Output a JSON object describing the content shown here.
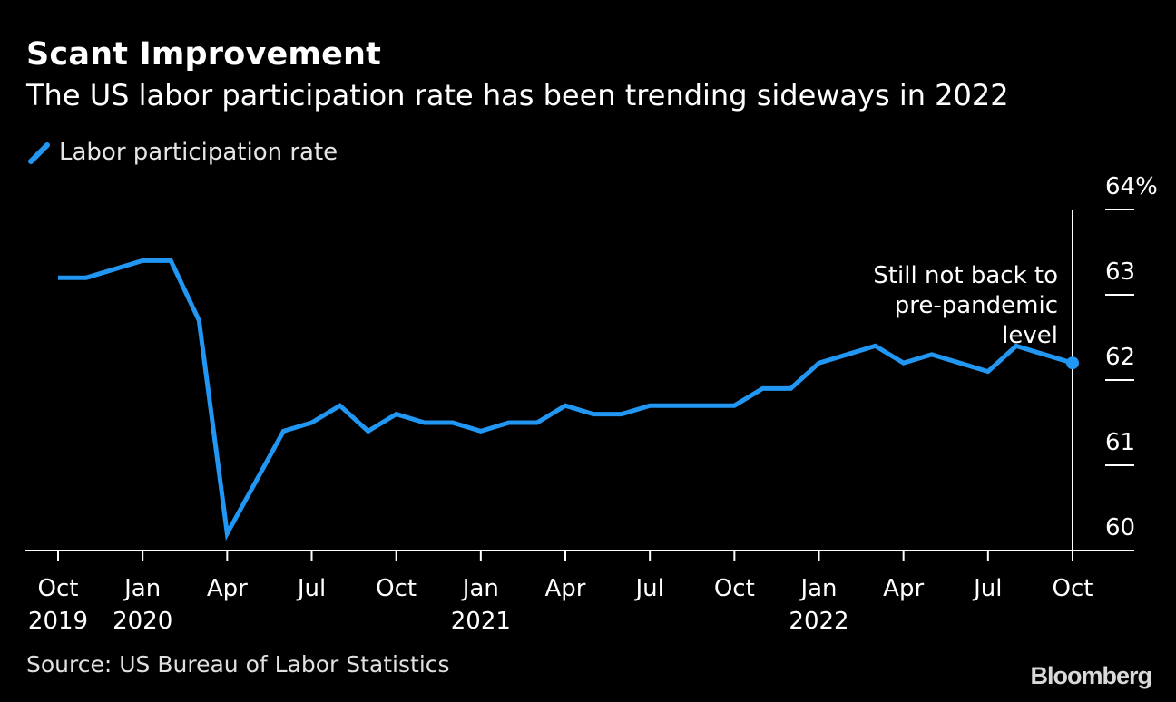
{
  "title": "Scant Improvement",
  "subtitle": "The US labor participation rate has been trending sideways in 2022",
  "source": "Source: US Bureau of Labor Statistics",
  "brand": "Bloomberg",
  "legend_icon": "line-swatch-icon",
  "colors": {
    "background": "#000000",
    "series": "#2196f3",
    "axis": "#ffffff",
    "text": "#ffffff"
  },
  "chart_data": {
    "type": "line",
    "title": "Scant Improvement",
    "subtitle": "The US labor participation rate has been trending sideways in 2022",
    "xlabel": "",
    "ylabel": "",
    "x": [
      "2019-10",
      "2019-11",
      "2019-12",
      "2020-01",
      "2020-02",
      "2020-03",
      "2020-04",
      "2020-05",
      "2020-06",
      "2020-07",
      "2020-08",
      "2020-09",
      "2020-10",
      "2020-11",
      "2020-12",
      "2021-01",
      "2021-02",
      "2021-03",
      "2021-04",
      "2021-05",
      "2021-06",
      "2021-07",
      "2021-08",
      "2021-09",
      "2021-10",
      "2021-11",
      "2021-12",
      "2022-01",
      "2022-02",
      "2022-03",
      "2022-04",
      "2022-05",
      "2022-06",
      "2022-07",
      "2022-08",
      "2022-09",
      "2022-10"
    ],
    "series": [
      {
        "name": "Labor participation rate",
        "values": [
          63.2,
          63.2,
          63.3,
          63.4,
          63.4,
          62.7,
          60.2,
          60.8,
          61.4,
          61.5,
          61.7,
          61.4,
          61.6,
          61.5,
          61.5,
          61.4,
          61.5,
          61.5,
          61.7,
          61.6,
          61.6,
          61.7,
          61.7,
          61.7,
          61.7,
          61.9,
          61.9,
          62.2,
          62.3,
          62.4,
          62.2,
          62.3,
          62.2,
          62.1,
          62.4,
          62.3,
          62.2
        ]
      }
    ],
    "ylim": [
      59.8,
      64.0
    ],
    "y_ticks": [
      {
        "value": 64,
        "label": "64%"
      },
      {
        "value": 63,
        "label": "63"
      },
      {
        "value": 62,
        "label": "62"
      },
      {
        "value": 61,
        "label": "61"
      },
      {
        "value": 60,
        "label": "60"
      }
    ],
    "x_ticks": [
      {
        "x": "2019-10",
        "label": "Oct",
        "year": "2019"
      },
      {
        "x": "2020-01",
        "label": "Jan",
        "year": "2020"
      },
      {
        "x": "2020-04",
        "label": "Apr",
        "year": ""
      },
      {
        "x": "2020-07",
        "label": "Jul",
        "year": ""
      },
      {
        "x": "2020-10",
        "label": "Oct",
        "year": ""
      },
      {
        "x": "2021-01",
        "label": "Jan",
        "year": "2021"
      },
      {
        "x": "2021-04",
        "label": "Apr",
        "year": ""
      },
      {
        "x": "2021-07",
        "label": "Jul",
        "year": ""
      },
      {
        "x": "2021-10",
        "label": "Oct",
        "year": ""
      },
      {
        "x": "2022-01",
        "label": "Jan",
        "year": "2022"
      },
      {
        "x": "2022-04",
        "label": "Apr",
        "year": ""
      },
      {
        "x": "2022-07",
        "label": "Jul",
        "year": ""
      },
      {
        "x": "2022-10",
        "label": "Oct",
        "year": ""
      }
    ],
    "annotation": {
      "lines": [
        "Still not back to",
        "pre-pandemic",
        "level"
      ],
      "x": "2022-10"
    },
    "grid": false,
    "legend_position": "top-left"
  }
}
